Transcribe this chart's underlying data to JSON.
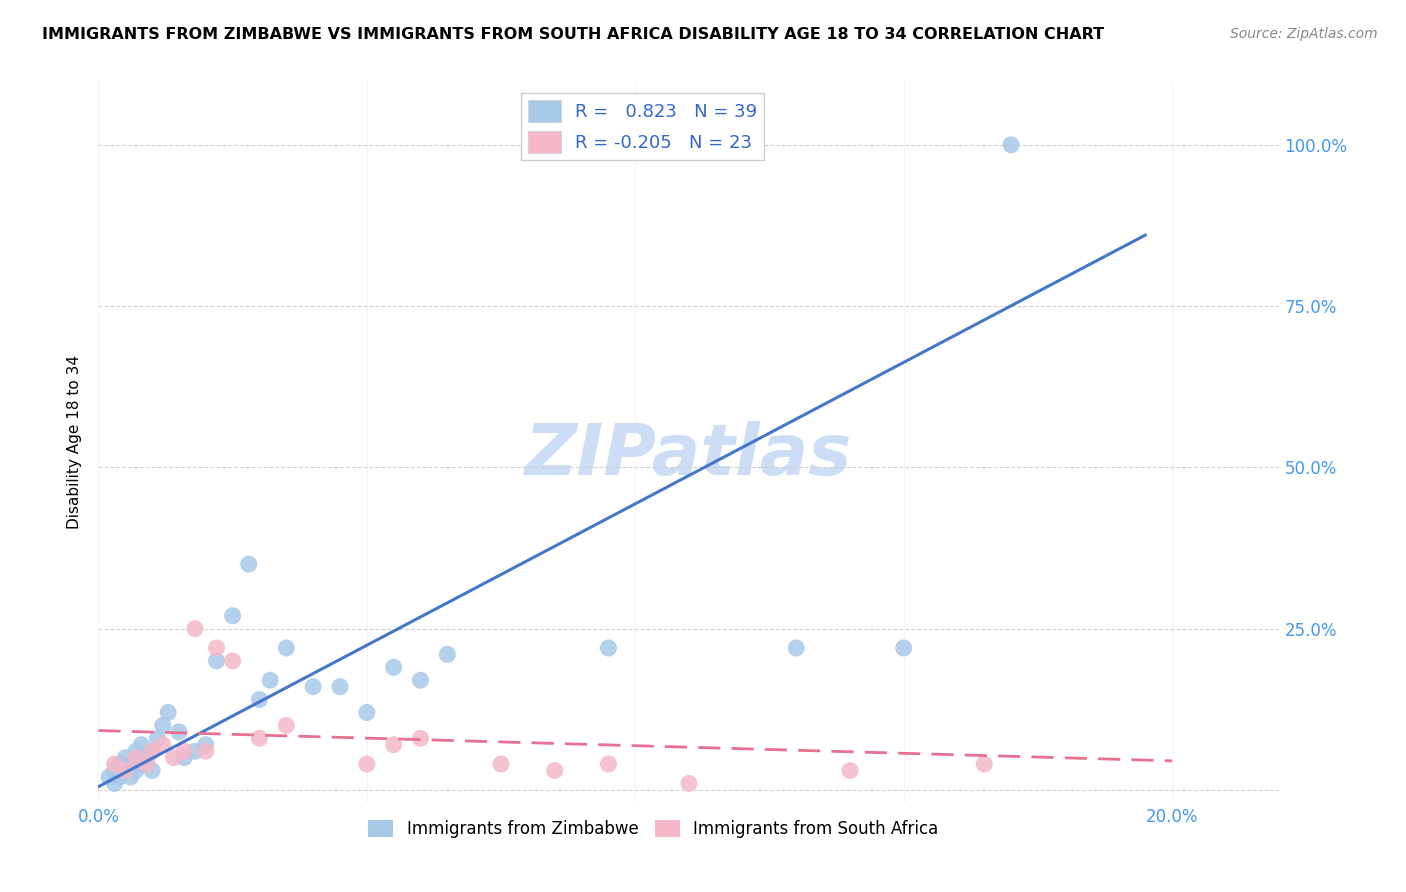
{
  "title": "IMMIGRANTS FROM ZIMBABWE VS IMMIGRANTS FROM SOUTH AFRICA DISABILITY AGE 18 TO 34 CORRELATION CHART",
  "source": "Source: ZipAtlas.com",
  "ylabel": "Disability Age 18 to 34",
  "xlim": [
    0.0,
    0.22
  ],
  "ylim": [
    -0.02,
    1.1
  ],
  "plot_xlim": [
    0.0,
    0.2
  ],
  "plot_ylim": [
    0.0,
    1.05
  ],
  "x_ticks": [
    0.0,
    0.05,
    0.1,
    0.15,
    0.2
  ],
  "x_tick_labels": [
    "0.0%",
    "",
    "",
    "",
    "20.0%"
  ],
  "y_tick_labels": [
    "",
    "25.0%",
    "50.0%",
    "75.0%",
    "100.0%"
  ],
  "y_ticks": [
    0.0,
    0.25,
    0.5,
    0.75,
    1.0
  ],
  "blue_color": "#a8c8e8",
  "pink_color": "#f4b8c8",
  "blue_line_color": "#4477cc",
  "pink_line_color": "#e87090",
  "right_tick_color": "#4499ee",
  "watermark_color": "#ccddf5",
  "legend_blue_label": "R =   0.823   N = 39",
  "legend_pink_label": "R = -0.205   N = 23",
  "legend_bottom_blue": "Immigrants from Zimbabwe",
  "legend_bottom_pink": "Immigrants from South Africa",
  "watermark": "ZIPatlas",
  "blue_scatter_x": [
    0.002,
    0.003,
    0.003,
    0.004,
    0.004,
    0.005,
    0.005,
    0.006,
    0.006,
    0.007,
    0.007,
    0.008,
    0.008,
    0.009,
    0.01,
    0.01,
    0.011,
    0.012,
    0.013,
    0.015,
    0.016,
    0.018,
    0.02,
    0.022,
    0.025,
    0.028,
    0.03,
    0.032,
    0.035,
    0.04,
    0.045,
    0.05,
    0.055,
    0.06,
    0.065,
    0.095,
    0.13,
    0.15,
    0.17
  ],
  "blue_scatter_y": [
    0.02,
    0.01,
    0.03,
    0.02,
    0.04,
    0.03,
    0.05,
    0.02,
    0.04,
    0.03,
    0.06,
    0.04,
    0.07,
    0.05,
    0.03,
    0.06,
    0.08,
    0.1,
    0.12,
    0.09,
    0.05,
    0.06,
    0.07,
    0.2,
    0.27,
    0.35,
    0.14,
    0.17,
    0.22,
    0.16,
    0.16,
    0.12,
    0.19,
    0.17,
    0.21,
    0.22,
    0.22,
    0.22,
    1.0
  ],
  "pink_scatter_x": [
    0.003,
    0.005,
    0.007,
    0.009,
    0.01,
    0.012,
    0.014,
    0.016,
    0.018,
    0.02,
    0.022,
    0.025,
    0.03,
    0.035,
    0.05,
    0.055,
    0.06,
    0.075,
    0.085,
    0.095,
    0.11,
    0.14,
    0.165
  ],
  "pink_scatter_y": [
    0.04,
    0.03,
    0.05,
    0.04,
    0.06,
    0.07,
    0.05,
    0.06,
    0.25,
    0.06,
    0.22,
    0.2,
    0.08,
    0.1,
    0.04,
    0.07,
    0.08,
    0.04,
    0.03,
    0.04,
    0.01,
    0.03,
    0.04
  ],
  "blue_line_x": [
    0.0,
    0.195
  ],
  "blue_line_y": [
    0.005,
    0.86
  ],
  "pink_line_x": [
    0.0,
    0.2
  ],
  "pink_line_y": [
    0.092,
    0.045
  ]
}
